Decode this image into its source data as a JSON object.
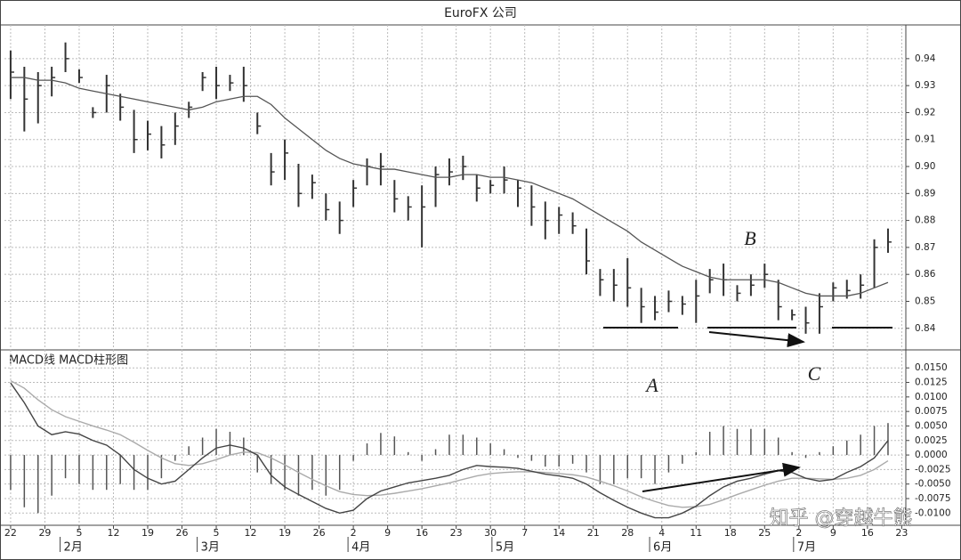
{
  "chart_data": [
    {
      "type": "ohlc",
      "title": "EuroFX 公司",
      "x": [
        0,
        2,
        4,
        6,
        8,
        10,
        12,
        14,
        16,
        18,
        20,
        22,
        24,
        26,
        28,
        30,
        32,
        34,
        36,
        38,
        40,
        42,
        44,
        46,
        48,
        50,
        52,
        54,
        56,
        58,
        60,
        62,
        64,
        66,
        68,
        70,
        72,
        74,
        76,
        78,
        80,
        82,
        84,
        86,
        88,
        90,
        92,
        94,
        96,
        98,
        100,
        102,
        104,
        106,
        108,
        110,
        112,
        114,
        116,
        118,
        120,
        122,
        124,
        126,
        128
      ],
      "high": [
        0.943,
        0.937,
        0.935,
        0.937,
        0.946,
        0.936,
        0.922,
        0.934,
        0.927,
        0.921,
        0.917,
        0.915,
        0.92,
        0.924,
        0.935,
        0.937,
        0.934,
        0.937,
        0.92,
        0.905,
        0.91,
        0.901,
        0.897,
        0.89,
        0.887,
        0.895,
        0.903,
        0.905,
        0.895,
        0.889,
        0.893,
        0.9,
        0.903,
        0.904,
        0.897,
        0.895,
        0.9,
        0.895,
        0.893,
        0.887,
        0.885,
        0.883,
        0.877,
        0.862,
        0.862,
        0.866,
        0.855,
        0.852,
        0.854,
        0.852,
        0.858,
        0.862,
        0.864,
        0.856,
        0.86,
        0.864,
        0.858,
        0.847,
        0.848,
        0.853,
        0.857,
        0.858,
        0.86,
        0.873,
        0.877
      ],
      "low": [
        0.925,
        0.913,
        0.916,
        0.926,
        0.935,
        0.931,
        0.918,
        0.92,
        0.917,
        0.905,
        0.906,
        0.903,
        0.908,
        0.918,
        0.928,
        0.925,
        0.928,
        0.924,
        0.912,
        0.893,
        0.895,
        0.885,
        0.888,
        0.88,
        0.875,
        0.885,
        0.893,
        0.893,
        0.883,
        0.88,
        0.87,
        0.885,
        0.893,
        0.895,
        0.887,
        0.89,
        0.89,
        0.885,
        0.878,
        0.873,
        0.875,
        0.875,
        0.86,
        0.852,
        0.85,
        0.848,
        0.842,
        0.843,
        0.846,
        0.845,
        0.842,
        0.853,
        0.852,
        0.85,
        0.852,
        0.855,
        0.843,
        0.843,
        0.838,
        0.838,
        0.85,
        0.851,
        0.851,
        0.855,
        0.868
      ],
      "close": [
        0.935,
        0.925,
        0.93,
        0.933,
        0.94,
        0.933,
        0.92,
        0.93,
        0.922,
        0.91,
        0.912,
        0.908,
        0.915,
        0.922,
        0.933,
        0.93,
        0.931,
        0.93,
        0.915,
        0.898,
        0.905,
        0.89,
        0.894,
        0.884,
        0.88,
        0.892,
        0.9,
        0.9,
        0.888,
        0.885,
        0.885,
        0.897,
        0.898,
        0.9,
        0.892,
        0.893,
        0.895,
        0.892,
        0.885,
        0.88,
        0.882,
        0.878,
        0.865,
        0.858,
        0.856,
        0.855,
        0.848,
        0.846,
        0.85,
        0.849,
        0.852,
        0.858,
        0.858,
        0.853,
        0.856,
        0.86,
        0.848,
        0.845,
        0.842,
        0.848,
        0.855,
        0.854,
        0.856,
        0.87,
        0.872
      ],
      "ma": [
        0.933,
        0.933,
        0.932,
        0.932,
        0.931,
        0.929,
        0.928,
        0.927,
        0.926,
        0.925,
        0.924,
        0.923,
        0.922,
        0.921,
        0.922,
        0.924,
        0.925,
        0.926,
        0.926,
        0.923,
        0.918,
        0.914,
        0.91,
        0.906,
        0.903,
        0.901,
        0.9,
        0.899,
        0.899,
        0.898,
        0.897,
        0.896,
        0.896,
        0.897,
        0.897,
        0.896,
        0.896,
        0.895,
        0.894,
        0.892,
        0.89,
        0.888,
        0.885,
        0.882,
        0.879,
        0.876,
        0.872,
        0.869,
        0.866,
        0.863,
        0.861,
        0.859,
        0.858,
        0.858,
        0.858,
        0.858,
        0.857,
        0.855,
        0.853,
        0.852,
        0.852,
        0.852,
        0.853,
        0.855,
        0.857
      ],
      "bar_color": "#333333",
      "ma_color": "#555555",
      "xlim": [
        -0.9,
        130.6
      ],
      "ylim": [
        0.832,
        0.9525
      ],
      "yticks": [
        0.94,
        0.93,
        0.92,
        0.91,
        {
          "value": 0.9,
          "label": "0.90"
        },
        0.89,
        0.88,
        0.87,
        0.86,
        0.85,
        0.84
      ],
      "grid": true,
      "annotations": [
        "B"
      ]
    },
    {
      "type": "macd",
      "title": "MACD线  MACD柱形图",
      "x": [
        0,
        2,
        4,
        6,
        8,
        10,
        12,
        14,
        16,
        18,
        20,
        22,
        24,
        26,
        28,
        30,
        32,
        34,
        36,
        38,
        40,
        42,
        44,
        46,
        48,
        50,
        52,
        54,
        56,
        58,
        60,
        62,
        64,
        66,
        68,
        70,
        72,
        74,
        76,
        78,
        80,
        82,
        84,
        86,
        88,
        90,
        92,
        94,
        96,
        98,
        100,
        102,
        104,
        106,
        108,
        110,
        112,
        114,
        116,
        118,
        120,
        122,
        124,
        126,
        128
      ],
      "macd": [
        0.0124,
        0.009,
        0.005,
        0.0035,
        0.004,
        0.0036,
        0.0025,
        0.0017,
        0,
        -0.0025,
        -0.004,
        -0.005,
        -0.0045,
        -0.0025,
        -0.0005,
        0.0012,
        0.0017,
        0.0012,
        0,
        -0.0035,
        -0.0055,
        -0.0068,
        -0.008,
        -0.0092,
        -0.01,
        -0.0095,
        -0.0075,
        -0.0062,
        -0.0055,
        -0.0048,
        -0.0044,
        -0.004,
        -0.0035,
        -0.0025,
        -0.0018,
        -0.002,
        -0.0021,
        -0.0023,
        -0.0028,
        -0.0033,
        -0.0036,
        -0.004,
        -0.005,
        -0.0065,
        -0.0078,
        -0.009,
        -0.01,
        -0.0108,
        -0.0108,
        -0.01,
        -0.0088,
        -0.007,
        -0.0055,
        -0.0045,
        -0.004,
        -0.0033,
        -0.0027,
        -0.003,
        -0.004,
        -0.0045,
        -0.0042,
        -0.003,
        -0.002,
        -0.0005,
        0.0025
      ],
      "signal": [
        0.0128,
        0.0115,
        0.0095,
        0.0078,
        0.0066,
        0.0058,
        0.005,
        0.0043,
        0.0035,
        0.0022,
        0.0008,
        -0.0005,
        -0.0015,
        -0.0018,
        -0.0015,
        -0.0008,
        0,
        0.0005,
        0.0004,
        -0.0005,
        -0.0017,
        -0.003,
        -0.0042,
        -0.0053,
        -0.0063,
        -0.0068,
        -0.007,
        -0.0069,
        -0.0066,
        -0.0062,
        -0.0058,
        -0.0053,
        -0.0048,
        -0.0042,
        -0.0036,
        -0.0032,
        -0.003,
        -0.0029,
        -0.0029,
        -0.003,
        -0.0032,
        -0.0034,
        -0.0038,
        -0.0045,
        -0.0053,
        -0.0062,
        -0.0072,
        -0.008,
        -0.0087,
        -0.009,
        -0.0089,
        -0.0085,
        -0.0077,
        -0.0068,
        -0.006,
        -0.0052,
        -0.0045,
        -0.004,
        -0.004,
        -0.0041,
        -0.0042,
        -0.004,
        -0.0035,
        -0.0025,
        -0.001
      ],
      "histogram": [
        -0.006,
        -0.009,
        -0.01,
        -0.007,
        -0.004,
        -0.005,
        -0.006,
        -0.006,
        -0.005,
        -0.006,
        -0.006,
        -0.004,
        -0.001,
        0.0015,
        0.003,
        0.0045,
        0.004,
        0.003,
        -0.003,
        -0.005,
        -0.006,
        -0.007,
        -0.006,
        -0.007,
        -0.006,
        -0.001,
        0.002,
        0.0038,
        0.0032,
        0.0005,
        -0.001,
        0.001,
        0.0035,
        0.0035,
        0.003,
        0.002,
        0.001,
        -0.0005,
        -0.001,
        -0.002,
        -0.002,
        -0.0015,
        -0.003,
        -0.005,
        -0.005,
        -0.004,
        -0.004,
        -0.005,
        -0.003,
        -0.0015,
        0.0005,
        0.004,
        0.005,
        0.0045,
        0.0045,
        0.0045,
        0.003,
        0.0005,
        -0.0005,
        0.0005,
        0.0015,
        0.0025,
        0.0035,
        0.005,
        0.0055
      ],
      "macd_color": "#444444",
      "signal_color": "#aaaaaa",
      "histogram_color": "#555555",
      "xlim": [
        -0.9,
        130.6
      ],
      "ylim": [
        -0.0121,
        0.0181
      ],
      "yticks": [
        {
          "value": 0.015,
          "label": "0.0150"
        },
        {
          "value": 0.0125,
          "label": "0.0125"
        },
        {
          "value": 0.01,
          "label": "0.0100"
        },
        {
          "value": 0.0075,
          "label": "0.0075"
        },
        {
          "value": 0.005,
          "label": "0.0050"
        },
        {
          "value": 0.0025,
          "label": "0.0025"
        },
        {
          "value": 0,
          "label": "0.0000"
        },
        {
          "value": -0.0025,
          "label": "-0.0025"
        },
        {
          "value": -0.005,
          "label": "-0.0050"
        },
        {
          "value": -0.0075,
          "label": "-0.0075"
        },
        {
          "value": -0.01,
          "label": "-0.0100"
        }
      ],
      "xticks": [
        {
          "value": 0,
          "label": "22"
        },
        {
          "value": 5,
          "label": "29"
        },
        {
          "value": 10,
          "label": "5"
        },
        {
          "value": 15,
          "label": "12"
        },
        {
          "value": 20,
          "label": "19"
        },
        {
          "value": 25,
          "label": "26"
        },
        {
          "value": 30,
          "label": "5"
        },
        {
          "value": 35,
          "label": "12"
        },
        {
          "value": 40,
          "label": "19"
        },
        {
          "value": 45,
          "label": "26"
        },
        {
          "value": 50,
          "label": "2"
        },
        {
          "value": 55,
          "label": "9"
        },
        {
          "value": 60,
          "label": "16"
        },
        {
          "value": 65,
          "label": "23"
        },
        {
          "value": 70,
          "label": "30"
        },
        {
          "value": 75,
          "label": "7"
        },
        {
          "value": 80,
          "label": "14"
        },
        {
          "value": 85,
          "label": "21"
        },
        {
          "value": 90,
          "label": "28"
        },
        {
          "value": 95,
          "label": "4"
        },
        {
          "value": 100,
          "label": "11"
        },
        {
          "value": 105,
          "label": "18"
        },
        {
          "value": 110,
          "label": "25"
        },
        {
          "value": 115,
          "label": "2"
        },
        {
          "value": 120,
          "label": "9"
        },
        {
          "value": 125,
          "label": "16"
        },
        {
          "value": 130,
          "label": "23"
        }
      ],
      "month_ticks": [
        {
          "value": 8,
          "label": "2月"
        },
        {
          "value": 28,
          "label": "3月"
        },
        {
          "value": 50,
          "label": "4月"
        },
        {
          "value": 71,
          "label": "5月"
        },
        {
          "value": 94,
          "label": "6月"
        },
        {
          "value": 115,
          "label": "7月"
        }
      ],
      "grid": true,
      "annotations": [
        "A",
        "C"
      ]
    }
  ],
  "watermark": "知乎 @穿越牛熊"
}
